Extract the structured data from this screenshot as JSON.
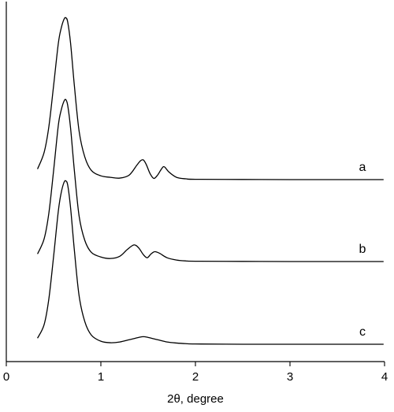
{
  "chart_data": {
    "type": "line",
    "title": "",
    "xlabel": "2θ, degree",
    "ylabel": "",
    "xlim": [
      0,
      4
    ],
    "xticks": [
      0,
      1,
      2,
      3,
      4
    ],
    "xtick_labels": [
      "0",
      "1",
      "2",
      "3",
      "4"
    ],
    "y_ticks_shown": false,
    "grid": false,
    "series": [
      {
        "name": "a",
        "color": "#000000",
        "baseline_offset": 2.0,
        "x": [
          0.33,
          0.4,
          0.45,
          0.5,
          0.55,
          0.58,
          0.61,
          0.63,
          0.65,
          0.68,
          0.72,
          0.77,
          0.83,
          0.9,
          1.0,
          1.1,
          1.2,
          1.3,
          1.38,
          1.42,
          1.45,
          1.48,
          1.52,
          1.56,
          1.6,
          1.63,
          1.66,
          1.68,
          1.72,
          1.8,
          1.9,
          2.0,
          2.5,
          3.0,
          3.5,
          3.99
        ],
        "y": [
          0.07,
          0.18,
          0.35,
          0.62,
          0.9,
          1.0,
          1.06,
          1.07,
          1.04,
          0.9,
          0.62,
          0.32,
          0.15,
          0.06,
          0.025,
          0.015,
          0.01,
          0.03,
          0.095,
          0.125,
          0.13,
          0.1,
          0.04,
          0.008,
          0.03,
          0.06,
          0.085,
          0.08,
          0.05,
          0.015,
          0.005,
          0.002,
          0.001,
          0.0,
          0.0,
          0.0
        ]
      },
      {
        "name": "b",
        "color": "#000000",
        "baseline_offset": 1.0,
        "x": [
          0.33,
          0.4,
          0.45,
          0.5,
          0.55,
          0.58,
          0.61,
          0.63,
          0.65,
          0.68,
          0.72,
          0.77,
          0.83,
          0.9,
          1.0,
          1.1,
          1.2,
          1.28,
          1.35,
          1.4,
          1.45,
          1.49,
          1.53,
          1.57,
          1.62,
          1.7,
          1.8,
          1.9,
          2.0,
          2.5,
          3.0,
          3.5,
          3.99
        ],
        "y": [
          0.05,
          0.15,
          0.32,
          0.6,
          0.9,
          1.0,
          1.06,
          1.07,
          1.03,
          0.88,
          0.6,
          0.3,
          0.14,
          0.06,
          0.03,
          0.02,
          0.035,
          0.08,
          0.11,
          0.09,
          0.045,
          0.025,
          0.05,
          0.065,
          0.055,
          0.025,
          0.01,
          0.004,
          0.002,
          0.001,
          0.0,
          0.0,
          0.0
        ]
      },
      {
        "name": "c",
        "color": "#000000",
        "baseline_offset": 0.0,
        "x": [
          0.33,
          0.4,
          0.45,
          0.5,
          0.55,
          0.58,
          0.61,
          0.63,
          0.65,
          0.68,
          0.72,
          0.77,
          0.83,
          0.9,
          1.0,
          1.1,
          1.2,
          1.3,
          1.4,
          1.45,
          1.5,
          1.6,
          1.7,
          1.8,
          1.9,
          2.0,
          2.5,
          3.0,
          3.5,
          3.99
        ],
        "y": [
          0.04,
          0.13,
          0.3,
          0.58,
          0.88,
          1.0,
          1.07,
          1.08,
          1.05,
          0.9,
          0.62,
          0.32,
          0.15,
          0.06,
          0.02,
          0.01,
          0.015,
          0.03,
          0.045,
          0.05,
          0.045,
          0.03,
          0.015,
          0.008,
          0.004,
          0.002,
          0.0,
          0.0,
          0.0,
          0.0
        ]
      }
    ]
  }
}
